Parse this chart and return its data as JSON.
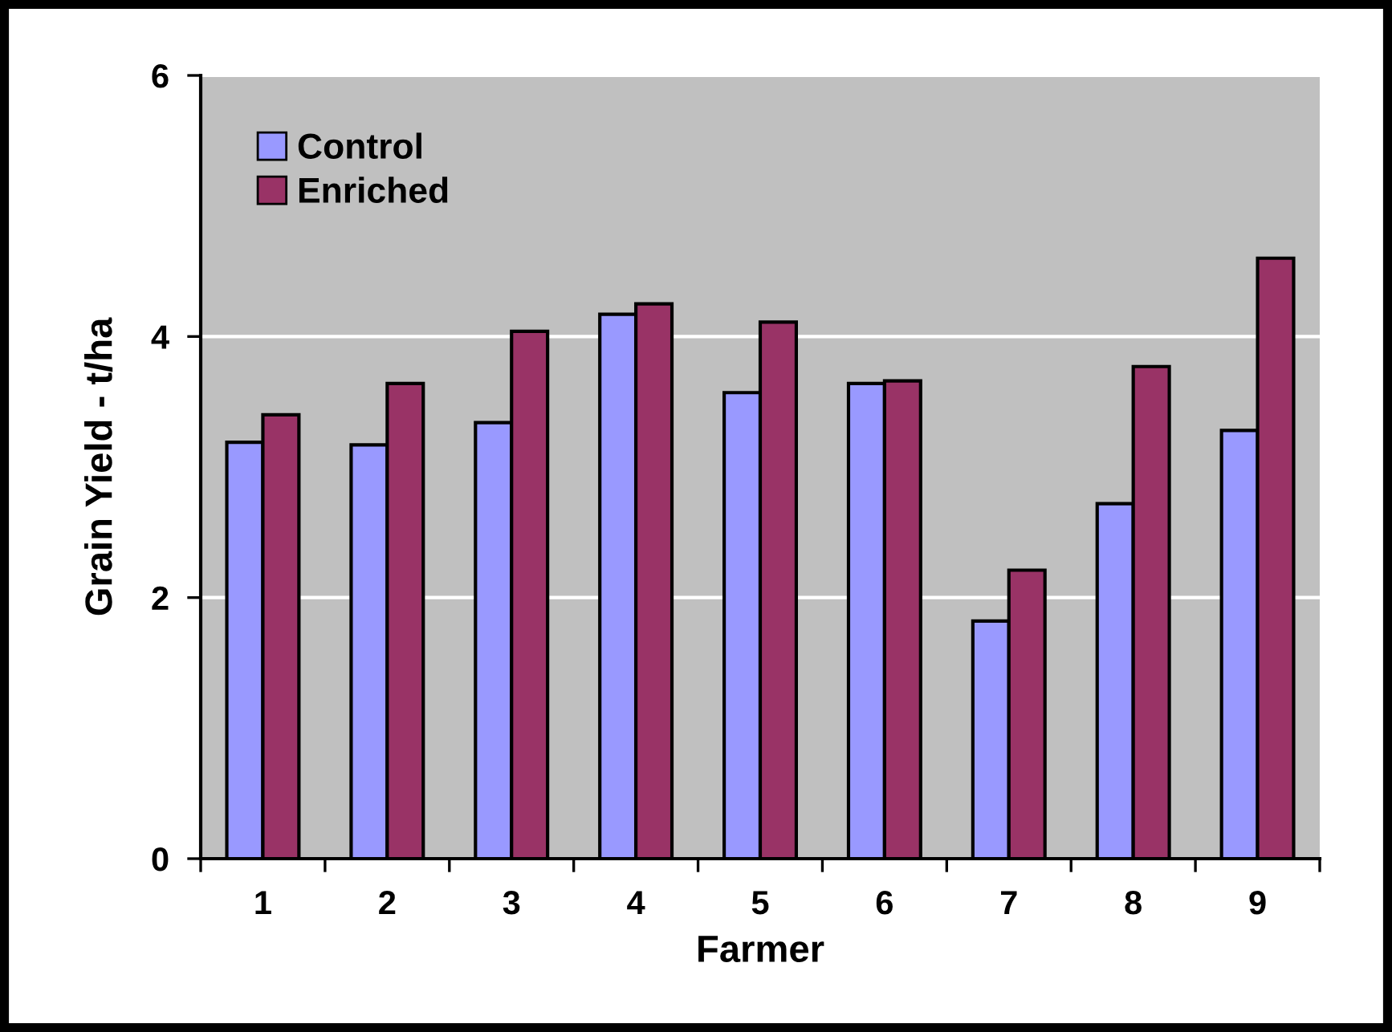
{
  "chart_data": {
    "type": "bar",
    "xlabel": "Farmer",
    "ylabel": "Grain Yield - t/ha",
    "categories": [
      "1",
      "2",
      "3",
      "4",
      "5",
      "6",
      "7",
      "8",
      "9"
    ],
    "series": [
      {
        "name": "Control",
        "color": "#9999ff",
        "values": [
          3.19,
          3.17,
          3.34,
          4.17,
          3.57,
          3.64,
          1.82,
          2.72,
          3.28
        ]
      },
      {
        "name": "Enriched",
        "color": "#993366",
        "values": [
          3.4,
          3.64,
          4.04,
          4.25,
          4.11,
          3.66,
          2.21,
          3.77,
          4.6
        ]
      }
    ],
    "ylim": [
      0,
      6
    ],
    "yticks": [
      0,
      2,
      4,
      6
    ],
    "grid": "y",
    "legend": "top left"
  }
}
